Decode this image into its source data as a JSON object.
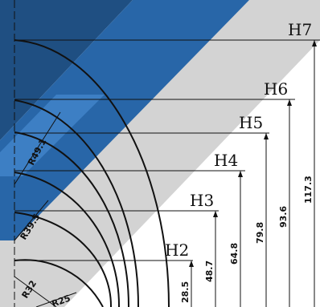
{
  "colors": {
    "dark_blue": "#1f4f82",
    "blue": "#2866a8",
    "light_blue": "#3d7fc4",
    "grey_band": "#d3d3d3",
    "line": "#111111",
    "background": "#ffffff"
  },
  "height_labels": [
    "H2",
    "H3",
    "H4",
    "H5",
    "H6",
    "H7"
  ],
  "height_values": [
    "28.5",
    "48.7",
    "64.8",
    "79.8",
    "93.6",
    "117.3"
  ],
  "radius_labels": [
    "R25",
    "R32",
    "R39.5",
    "R49.1"
  ]
}
